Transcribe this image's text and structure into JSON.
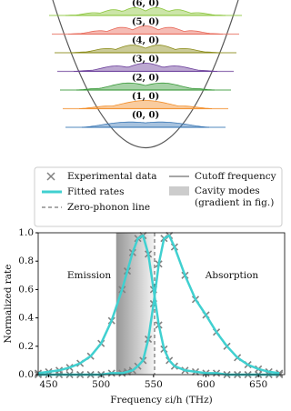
{
  "diagram": {
    "modes": [
      {
        "label": "(0, 0)",
        "color": "#3b78b5"
      },
      {
        "label": "(1, 0)",
        "color": "#f28e2b"
      },
      {
        "label": "(2, 0)",
        "color": "#3a9a3a"
      },
      {
        "label": "(3, 0)",
        "color": "#6a3d9a"
      },
      {
        "label": "(4, 0)",
        "color": "#8c8c1a"
      },
      {
        "label": "(5, 0)",
        "color": "#e86a5a"
      },
      {
        "label": "(6, 0)",
        "color": "#8dc63f"
      }
    ]
  },
  "chart_data": {
    "type": "line",
    "x_label": "Frequency εi/h (THz)",
    "y_label": "Normalized rate",
    "xlim": [
      440,
      675
    ],
    "xticks": [
      450,
      500,
      550,
      600,
      650
    ],
    "ylim": [
      0,
      1
    ],
    "yticks": [
      {
        "value": 0,
        "label": "0.0"
      },
      {
        "value": 0.2,
        "label": "0.2"
      },
      {
        "value": 0.4,
        "label": "0.4"
      },
      {
        "value": 0.6,
        "label": "0.6"
      },
      {
        "value": 0.8,
        "label": "0.8"
      },
      {
        "value": 1,
        "label": "1.0"
      }
    ],
    "x": [
      440,
      450,
      460,
      470,
      480,
      490,
      500,
      510,
      520,
      525,
      530,
      535,
      540,
      545,
      550,
      555,
      560,
      565,
      570,
      580,
      590,
      600,
      610,
      620,
      630,
      640,
      650,
      660,
      670
    ],
    "series": [
      {
        "name": "Experimental data",
        "color": "#808080",
        "style": "marker",
        "values": [
          0.01,
          0.02,
          0.03,
          0.05,
          0.08,
          0.13,
          0.22,
          0.38,
          0.6,
          0.73,
          0.86,
          0.96,
          0.98,
          0.85,
          0.6,
          0.35,
          0.18,
          0.1,
          0.06,
          0.03,
          0.02,
          0.01,
          0.01,
          0,
          0,
          0,
          0,
          0,
          0
        ]
      },
      {
        "color": "#808080",
        "style": "marker",
        "values": [
          0,
          0,
          0,
          0,
          0,
          0,
          0,
          0.01,
          0.01,
          0.02,
          0.03,
          0.06,
          0.1,
          0.25,
          0.5,
          0.78,
          0.96,
          0.98,
          0.9,
          0.7,
          0.53,
          0.42,
          0.3,
          0.2,
          0.12,
          0.07,
          0.04,
          0.02,
          0.01
        ]
      },
      {
        "name": "Fitted rates",
        "color": "#40d0d0",
        "style": "line",
        "values": [
          0.01,
          0.02,
          0.03,
          0.05,
          0.08,
          0.13,
          0.22,
          0.38,
          0.6,
          0.73,
          0.86,
          0.96,
          0.98,
          0.85,
          0.6,
          0.35,
          0.18,
          0.1,
          0.06,
          0.03,
          0.02,
          0.01,
          0.01,
          0,
          0,
          0,
          0,
          0,
          0
        ]
      },
      {
        "color": "#40d0d0",
        "style": "line",
        "values": [
          0,
          0,
          0,
          0,
          0,
          0,
          0,
          0.01,
          0.01,
          0.02,
          0.03,
          0.06,
          0.1,
          0.25,
          0.5,
          0.78,
          0.96,
          0.98,
          0.9,
          0.7,
          0.53,
          0.42,
          0.3,
          0.2,
          0.12,
          0.07,
          0.04,
          0.02,
          0.01
        ]
      }
    ],
    "zero_phonon": {
      "name": "Zero-phonon line",
      "x": 551
    },
    "cutoff": {
      "name": "Cutoff frequency",
      "x": 515
    },
    "cavity": {
      "name": [
        "Cavity modes",
        "(gradient in fig.)"
      ],
      "x": [
        515,
        551
      ]
    },
    "annotations": [
      "Emission",
      "Absorption"
    ]
  }
}
